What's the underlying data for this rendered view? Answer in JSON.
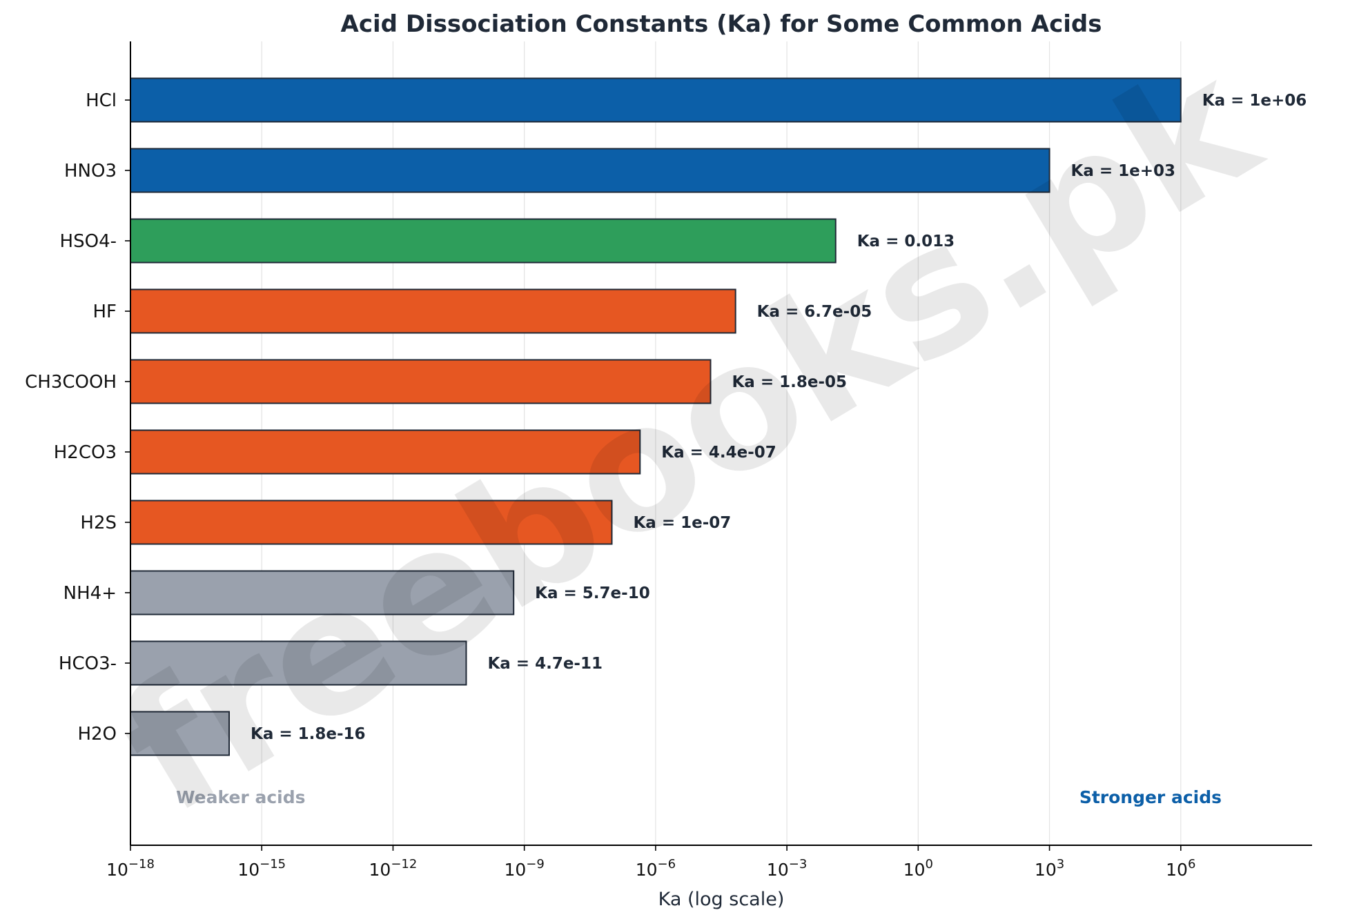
{
  "chart_data": {
    "type": "bar",
    "orientation": "horizontal",
    "title": "Acid Dissociation Constants (Ka) for Some Common Acids",
    "xlabel": "Ka (log scale)",
    "ylabel": "",
    "x_scale": "log",
    "xlim": [
      1e-18,
      1000000000.0
    ],
    "x_ticks": [
      {
        "value": 1e-18,
        "base": "10",
        "exp": "−18"
      },
      {
        "value": 1e-15,
        "base": "10",
        "exp": "−15"
      },
      {
        "value": 1e-12,
        "base": "10",
        "exp": "−12"
      },
      {
        "value": 1e-09,
        "base": "10",
        "exp": "−9"
      },
      {
        "value": 1e-06,
        "base": "10",
        "exp": "−6"
      },
      {
        "value": 0.001,
        "base": "10",
        "exp": "−3"
      },
      {
        "value": 1,
        "base": "10",
        "exp": "0"
      },
      {
        "value": 1000.0,
        "base": "10",
        "exp": "3"
      },
      {
        "value": 1000000.0,
        "base": "10",
        "exp": "6"
      }
    ],
    "grid": "vertical",
    "categories": [
      "HCl",
      "HNO3",
      "HSO4-",
      "HF",
      "CH3COOH",
      "H2CO3",
      "H2S",
      "NH4+",
      "HCO3-",
      "H2O"
    ],
    "values": [
      1000000.0,
      1000.0,
      0.013,
      6.7e-05,
      1.8e-05,
      4.4e-07,
      1e-07,
      5.7e-10,
      4.7e-11,
      1.8e-16
    ],
    "data_labels": [
      "Ka = 1e+06",
      "Ka = 1e+03",
      "Ka = 0.013",
      "Ka = 6.7e-05",
      "Ka = 1.8e-05",
      "Ka = 4.4e-07",
      "Ka = 1e-07",
      "Ka = 5.7e-10",
      "Ka = 4.7e-11",
      "Ka = 1.8e-16"
    ],
    "bar_colors": [
      "#0c5fa8",
      "#0c5fa8",
      "#2e9e5b",
      "#e65722",
      "#e65722",
      "#e65722",
      "#e65722",
      "#9aa1ad",
      "#9aa1ad",
      "#9aa1ad"
    ],
    "annotations": [
      {
        "text": "Weaker acids",
        "color": "#9aa1ad",
        "position": "bottom-left"
      },
      {
        "text": "Stronger acids",
        "color": "#0c5fa8",
        "position": "bottom-right"
      }
    ],
    "watermark": "freebooks.pk"
  },
  "colors": {
    "edge": "#1f2937",
    "grid": "#e3e3e3",
    "axis": "#000000"
  }
}
